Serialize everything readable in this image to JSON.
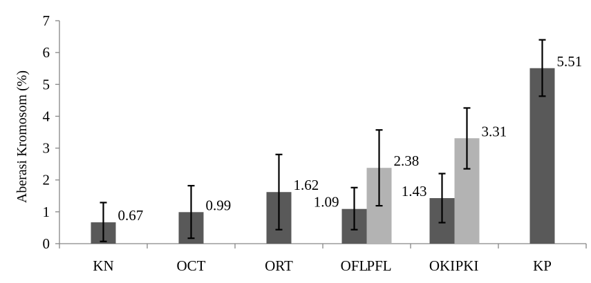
{
  "chart_data": {
    "type": "bar",
    "ylabel": "Aberasi Kromosom (%)",
    "ylim": [
      0,
      7
    ],
    "yticks": [
      0,
      1,
      2,
      3,
      4,
      5,
      6,
      7
    ],
    "grid": false,
    "legend": "none",
    "colors": {
      "dark": "#595959",
      "light": "#b3b3b3"
    },
    "groups": [
      "KN",
      "OCT",
      "ORT",
      "OFL PFL",
      "OKI PKI",
      "KP"
    ],
    "bars": [
      {
        "category": "KN",
        "group": 0,
        "slot": "single",
        "value": 0.67,
        "err_low": 0.07,
        "err_high": 1.29,
        "label": "0.67",
        "label_pos": "right",
        "color": "dark"
      },
      {
        "category": "OCT",
        "group": 1,
        "slot": "single",
        "value": 0.99,
        "err_low": 0.17,
        "err_high": 1.82,
        "label": "0.99",
        "label_pos": "right",
        "color": "dark"
      },
      {
        "category": "ORT",
        "group": 2,
        "slot": "single",
        "value": 1.62,
        "err_low": 0.44,
        "err_high": 2.8,
        "label": "1.62",
        "label_pos": "right",
        "color": "dark"
      },
      {
        "category": "OFL",
        "group": 3,
        "slot": "left",
        "value": 1.09,
        "err_low": 0.44,
        "err_high": 1.76,
        "label": "1.09",
        "label_pos": "left",
        "color": "dark"
      },
      {
        "category": "PFL",
        "group": 3,
        "slot": "right",
        "value": 2.38,
        "err_low": 1.19,
        "err_high": 3.57,
        "label": "2.38",
        "label_pos": "right",
        "color": "light"
      },
      {
        "category": "OKI",
        "group": 4,
        "slot": "left",
        "value": 1.43,
        "err_low": 0.66,
        "err_high": 2.2,
        "label": "1.43",
        "label_pos": "left",
        "color": "dark"
      },
      {
        "category": "PKI",
        "group": 4,
        "slot": "right",
        "value": 3.31,
        "err_low": 2.35,
        "err_high": 4.26,
        "label": "3.31",
        "label_pos": "right",
        "color": "light"
      },
      {
        "category": "KP",
        "group": 5,
        "slot": "single",
        "value": 5.51,
        "err_low": 4.63,
        "err_high": 6.4,
        "label": "5.51",
        "label_pos": "right",
        "color": "dark"
      }
    ]
  }
}
